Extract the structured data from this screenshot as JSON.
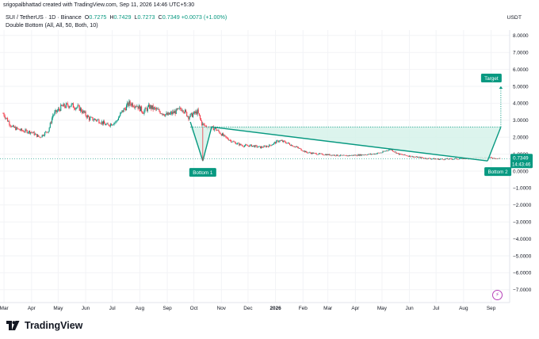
{
  "header": {
    "credit": "srigopalbhattad created with TradingView.com, Sep 11, 2026 14:46 UTC+5:30"
  },
  "symbol": {
    "name": "SUI / TetherUS · 1D · Binance",
    "open_label": "O",
    "open": "0.7275",
    "high_label": "H",
    "high": "0.7429",
    "low_label": "L",
    "low": "0.7273",
    "close_label": "C",
    "close": "0.7349",
    "change": "+0.0073 (+1.00%)"
  },
  "indicator": "Double Bottom (All, All, 50, Both, 10)",
  "currency": "USDT",
  "price_tag": {
    "price": "0.7349",
    "countdown": "14:43:46"
  },
  "annotations": {
    "bottom1": "Bottom 1",
    "bottom2": "Bottom 2",
    "target": "Target"
  },
  "brand": "TradingView",
  "colors": {
    "up": "#089981",
    "down": "#f23645",
    "pattern": "#089981",
    "fill": "#d6f2ea"
  },
  "chart_data": {
    "type": "candlestick",
    "y_axis": {
      "ticks": [
        "8.0000",
        "7.0000",
        "6.0000",
        "5.0000",
        "4.0000",
        "3.0000",
        "2.0000",
        "1.0000",
        "0.0000",
        "−1.0000",
        "−2.0000",
        "−3.0000",
        "−4.0000",
        "−5.0000",
        "−6.0000",
        "−7.0000"
      ],
      "ylim": [
        -7.6,
        8.6
      ]
    },
    "x_axis": {
      "ticks": [
        "Mar",
        "Apr",
        "May",
        "Jun",
        "Jul",
        "Aug",
        "Sep",
        "Oct",
        "Nov",
        "Dec",
        "2026",
        "Feb",
        "Mar",
        "Apr",
        "May",
        "Jun",
        "Jul",
        "Aug",
        "Sep"
      ]
    },
    "price_path": [
      [
        "2025-02-28",
        3.4
      ],
      [
        "2025-03-10",
        2.6
      ],
      [
        "2025-03-20",
        2.4
      ],
      [
        "2025-04-01",
        2.3
      ],
      [
        "2025-04-10",
        2.0
      ],
      [
        "2025-04-20",
        2.4
      ],
      [
        "2025-04-25",
        3.3
      ],
      [
        "2025-05-05",
        3.8
      ],
      [
        "2025-05-15",
        3.9
      ],
      [
        "2025-05-25",
        3.7
      ],
      [
        "2025-06-05",
        3.1
      ],
      [
        "2025-06-15",
        3.0
      ],
      [
        "2025-06-25",
        2.7
      ],
      [
        "2025-07-05",
        2.9
      ],
      [
        "2025-07-12",
        3.5
      ],
      [
        "2025-07-20",
        4.0
      ],
      [
        "2025-07-28",
        3.9
      ],
      [
        "2025-08-05",
        3.5
      ],
      [
        "2025-08-12",
        3.8
      ],
      [
        "2025-08-20",
        3.6
      ],
      [
        "2025-09-01",
        3.3
      ],
      [
        "2025-09-10",
        3.5
      ],
      [
        "2025-09-18",
        3.7
      ],
      [
        "2025-09-25",
        3.2
      ],
      [
        "2025-10-05",
        3.5
      ],
      [
        "2025-10-10",
        2.8
      ],
      [
        "2025-10-15",
        2.6
      ],
      [
        "2025-10-25",
        2.5
      ],
      [
        "2025-11-05",
        2.0
      ],
      [
        "2025-11-15",
        1.7
      ],
      [
        "2025-11-25",
        1.5
      ],
      [
        "2025-12-05",
        1.5
      ],
      [
        "2025-12-15",
        1.4
      ],
      [
        "2025-12-25",
        1.5
      ],
      [
        "2026-01-05",
        1.8
      ],
      [
        "2026-01-12",
        1.7
      ],
      [
        "2026-01-25",
        1.4
      ],
      [
        "2026-02-05",
        1.1
      ],
      [
        "2026-02-20",
        1.0
      ],
      [
        "2026-03-05",
        0.95
      ],
      [
        "2026-03-20",
        0.9
      ],
      [
        "2026-04-05",
        0.95
      ],
      [
        "2026-04-20",
        1.0
      ],
      [
        "2026-05-01",
        1.1
      ],
      [
        "2026-05-10",
        1.3
      ],
      [
        "2026-05-20",
        1.0
      ],
      [
        "2026-06-05",
        0.85
      ],
      [
        "2026-06-20",
        0.75
      ],
      [
        "2026-07-05",
        0.7
      ],
      [
        "2026-07-20",
        0.72
      ],
      [
        "2026-08-05",
        0.75
      ],
      [
        "2026-08-20",
        0.8
      ],
      [
        "2026-09-01",
        0.78
      ],
      [
        "2026-09-11",
        0.7349
      ]
    ],
    "double_bottom": {
      "points": [
        [
          "2025-09-27",
          2.9
        ],
        [
          "2025-10-11",
          0.6
        ],
        [
          "2025-10-21",
          2.6
        ],
        [
          "2026-08-28",
          0.6
        ],
        [
          "2026-09-12",
          2.6
        ]
      ],
      "neckline": 2.6,
      "target": 5.0,
      "current_price": 0.7349
    }
  }
}
